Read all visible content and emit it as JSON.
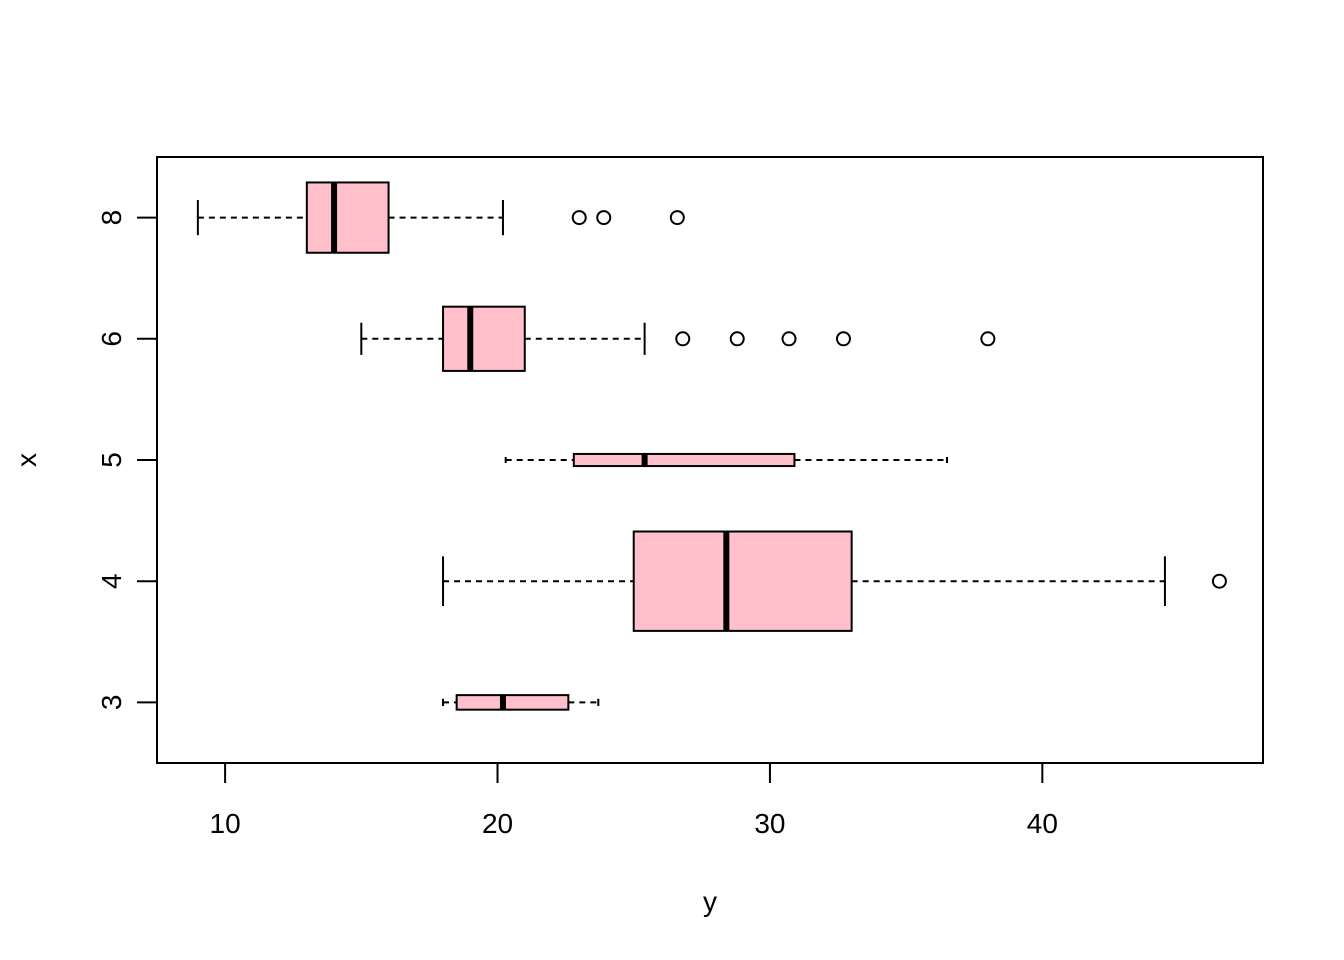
{
  "chart_data": {
    "type": "boxplot",
    "orientation": "horizontal",
    "xlabel": "y",
    "ylabel": "x",
    "xlim": [
      7.5,
      48.1
    ],
    "xticks": [
      10,
      20,
      30,
      40
    ],
    "box_fill": "#ffc0cb",
    "groups": [
      {
        "label": "3",
        "min": 18.0,
        "q1": 18.5,
        "median": 20.2,
        "q3": 22.6,
        "max": 23.7,
        "outliers": [],
        "width": 0.12
      },
      {
        "label": "4",
        "min": 18.0,
        "q1": 25.0,
        "median": 28.4,
        "q3": 33.0,
        "max": 44.5,
        "outliers": [
          46.5
        ],
        "width": 0.82
      },
      {
        "label": "5",
        "min": 20.3,
        "q1": 22.8,
        "median": 25.4,
        "q3": 30.9,
        "max": 36.5,
        "outliers": [],
        "width": 0.1
      },
      {
        "label": "6",
        "min": 15.0,
        "q1": 18.0,
        "median": 19.0,
        "q3": 21.0,
        "max": 25.4,
        "outliers": [
          26.8,
          28.8,
          30.7,
          32.7,
          38.0
        ],
        "width": 0.53
      },
      {
        "label": "8",
        "min": 9.0,
        "q1": 13.0,
        "median": 14.0,
        "q3": 16.0,
        "max": 20.2,
        "outliers": [
          23.0,
          23.9,
          26.6
        ],
        "width": 0.58
      }
    ]
  }
}
